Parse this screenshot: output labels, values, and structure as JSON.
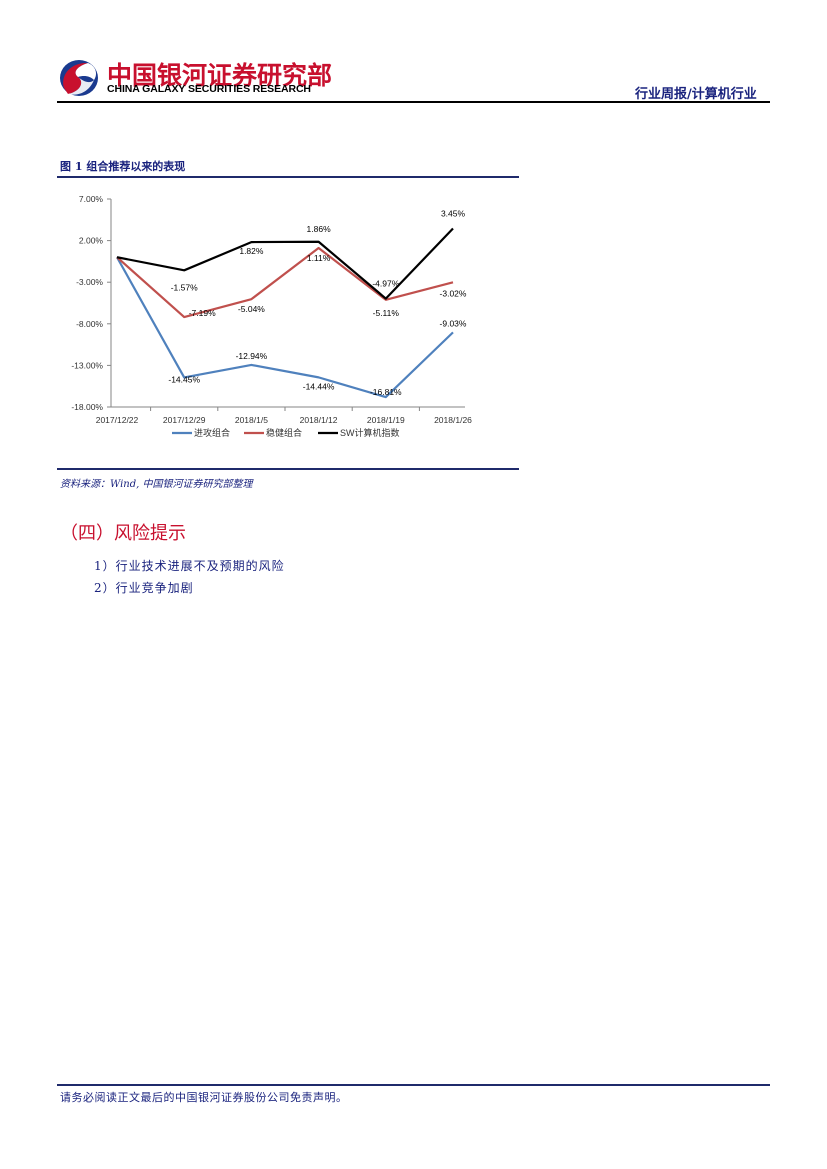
{
  "header": {
    "logo_cn": "中国银河证券研究部",
    "logo_en": "CHINA GALAXY SECURITIES RESEARCH",
    "report_type": "行业周报/计算机行业",
    "colors": {
      "logo_red": "#c8102e",
      "logo_blue": "#1a3a8f",
      "navy": "#1a237e"
    }
  },
  "figure": {
    "title": "图 1  组合推荐以来的表现",
    "source": "资料来源：Wind, 中国银河证券研究部整理"
  },
  "chart_data": {
    "type": "line",
    "title": "组合推荐以来的表现",
    "xlabel": "",
    "ylabel": "",
    "categories": [
      "2017/12/22",
      "2017/12/29",
      "2018/1/5",
      "2018/1/12",
      "2018/1/19",
      "2018/1/26"
    ],
    "y_ticks": [
      "7.00%",
      "2.00%",
      "-3.00%",
      "-8.00%",
      "-13.00%",
      "-18.00%"
    ],
    "ylim": [
      -18,
      7
    ],
    "grid": false,
    "legend_position": "bottom",
    "series": [
      {
        "name": "进攻组合",
        "color": "#4f81bd",
        "values": [
          0,
          -14.45,
          -12.94,
          -14.44,
          -16.81,
          -9.03
        ],
        "labels": [
          "",
          "-14.45%",
          "-12.94%",
          "-14.44%",
          "-16.81%",
          "-9.03%"
        ]
      },
      {
        "name": "稳健组合",
        "color": "#c0504d",
        "values": [
          0,
          -7.19,
          -5.04,
          1.11,
          -5.11,
          -3.02
        ],
        "labels": [
          "",
          "-7.19%",
          "-5.04%",
          "1.11%",
          "-5.11%",
          "-3.02%"
        ]
      },
      {
        "name": "SW计算机指数",
        "color": "#000000",
        "values": [
          0,
          -1.57,
          1.82,
          1.86,
          -4.97,
          3.45
        ],
        "labels": [
          "",
          "-1.57%",
          "1.82%",
          "1.86%",
          "-4.97%",
          "3.45%"
        ]
      }
    ]
  },
  "section": {
    "title": "（四）风险提示",
    "items": [
      "1）行业技术进展不及预期的风险",
      "2）行业竞争加剧"
    ]
  },
  "footer": {
    "disclaimer": "请务必阅读正文最后的中国银河证券股份公司免责声明。"
  }
}
